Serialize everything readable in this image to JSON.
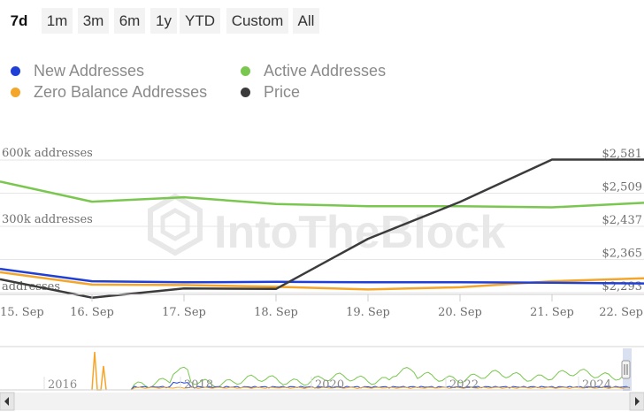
{
  "range_selector": {
    "buttons": [
      "7d",
      "1m",
      "3m",
      "6m",
      "1y",
      "YTD",
      "Custom",
      "All"
    ],
    "active": "7d"
  },
  "legend": {
    "items": [
      {
        "label": "New Addresses",
        "color": "#1f3fd6"
      },
      {
        "label": "Active Addresses",
        "color": "#7ac74f"
      },
      {
        "label": "Zero Balance Addresses",
        "color": "#f4a62a"
      },
      {
        "label": "Price",
        "color": "#3b3b3b"
      }
    ]
  },
  "watermark": "IntoTheBlock",
  "chart_data": {
    "type": "line",
    "title": "",
    "x": [
      "15. Sep",
      "16. Sep",
      "17. Sep",
      "18. Sep",
      "19. Sep",
      "20. Sep",
      "21. Sep",
      "22. Sep"
    ],
    "y_left": {
      "ticks": [
        {
          "label": "600k addresses",
          "value": 600000
        },
        {
          "label": "300k addresses",
          "value": 300000
        },
        {
          "label": "addresses",
          "value": 0
        }
      ],
      "range": [
        0,
        600000
      ]
    },
    "y_right": {
      "ticks": [
        {
          "label": "$2,581",
          "value": 2581
        },
        {
          "label": "$2,509",
          "value": 2509
        },
        {
          "label": "$2,437",
          "value": 2437
        },
        {
          "label": "$2,365",
          "value": 2365
        },
        {
          "label": "$2,293",
          "value": 2293
        }
      ],
      "range": [
        2293,
        2581
      ]
    },
    "series": [
      {
        "name": "Active Addresses",
        "axis": "left",
        "color": "#7ac74f",
        "values": [
          500000,
          410000,
          430000,
          400000,
          390000,
          390000,
          385000,
          405000
        ]
      },
      {
        "name": "New Addresses",
        "axis": "left",
        "color": "#1f3fd6",
        "values": [
          110000,
          55000,
          50000,
          52000,
          50000,
          50000,
          48000,
          45000
        ]
      },
      {
        "name": "Zero Balance Addresses",
        "axis": "left",
        "color": "#f4a62a",
        "values": [
          95000,
          40000,
          38000,
          30000,
          18000,
          28000,
          55000,
          68000
        ]
      },
      {
        "name": "Price",
        "axis": "right",
        "color": "#3b3b3b",
        "values": [
          2322,
          2282,
          2302,
          2301,
          2410,
          2490,
          2582,
          2582
        ]
      }
    ]
  },
  "navigator": {
    "years": [
      "2016",
      "2018",
      "2020",
      "2022",
      "2024"
    ]
  }
}
